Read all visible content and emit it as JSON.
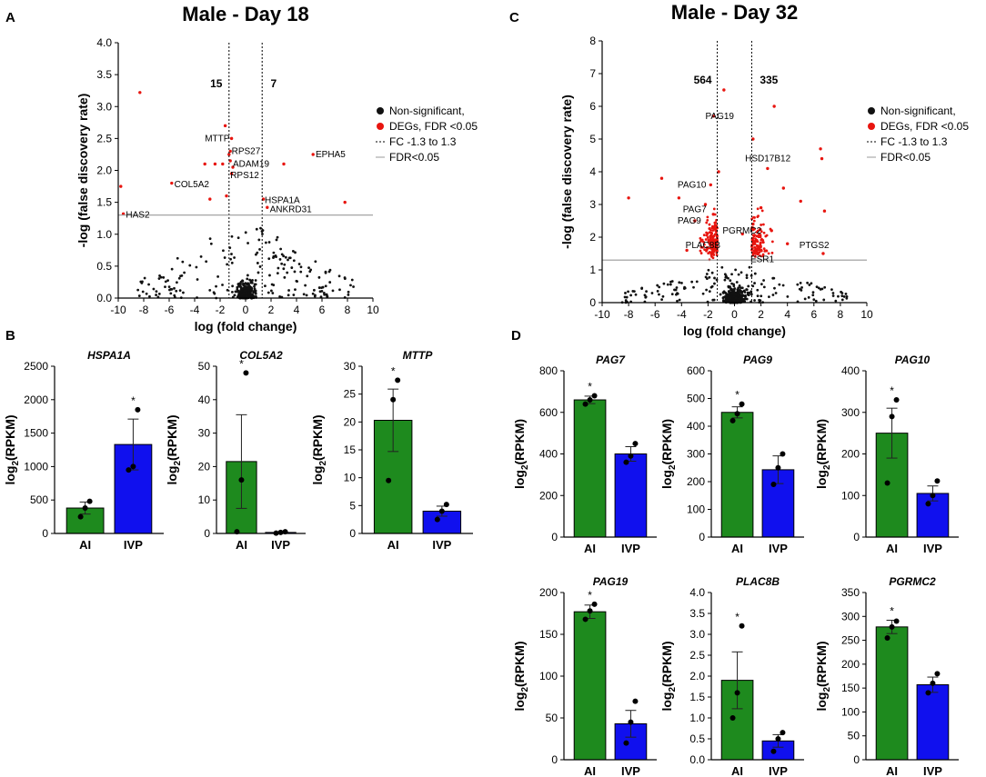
{
  "panel_labels": {
    "A": "A",
    "B": "B",
    "C": "C",
    "D": "D"
  },
  "legend": {
    "nonsig": "Non-significant,",
    "degs": "DEGs, FDR <0.05",
    "fc": "FC -1.3 to 1.3",
    "fdr": "FDR<0.05"
  },
  "colors": {
    "sig": "#e8150f",
    "nonsig": "#111111",
    "ai": "#1e8a1e",
    "ivp": "#1010ee"
  },
  "chart_data": [
    {
      "id": "A",
      "type": "scatter",
      "title": "Male - Day 18",
      "xlabel": "log (fold change)",
      "ylabel": "-log (false discovery rate)",
      "xlim": [
        -10,
        10
      ],
      "ylim": [
        0,
        4.0
      ],
      "xticks": [
        -10,
        -8,
        -6,
        -4,
        -2,
        0,
        2,
        4,
        6,
        8,
        10
      ],
      "yticks": [
        0.0,
        0.5,
        1.0,
        1.5,
        2.0,
        2.5,
        3.0,
        3.5,
        4.0
      ],
      "ytick_decimals": 1,
      "fc_lines": [
        -1.3,
        1.3
      ],
      "fdr_line": 1.3,
      "counts": [
        {
          "text": "15",
          "x": -2.3,
          "y": 3.3
        },
        {
          "text": "7",
          "x": 2.2,
          "y": 3.3
        }
      ],
      "sig_points": [
        {
          "x": -8.3,
          "y": 3.22
        },
        {
          "x": -9.8,
          "y": 1.75
        },
        {
          "x": -9.6,
          "y": 1.32
        },
        {
          "x": -5.8,
          "y": 1.8
        },
        {
          "x": -3.2,
          "y": 2.1
        },
        {
          "x": -2.4,
          "y": 2.1
        },
        {
          "x": -1.8,
          "y": 2.1
        },
        {
          "x": -1.2,
          "y": 2.3
        },
        {
          "x": -1.2,
          "y": 2.15
        },
        {
          "x": -1.0,
          "y": 2.05
        },
        {
          "x": -1.1,
          "y": 1.95
        },
        {
          "x": -2.8,
          "y": 1.55
        },
        {
          "x": -1.5,
          "y": 1.6
        },
        {
          "x": -1.1,
          "y": 2.5
        },
        {
          "x": -1.3,
          "y": 2.25
        },
        {
          "x": 3.0,
          "y": 2.1
        },
        {
          "x": 5.3,
          "y": 2.25
        },
        {
          "x": 1.4,
          "y": 1.55
        },
        {
          "x": 1.7,
          "y": 1.42
        },
        {
          "x": 7.8,
          "y": 1.5
        },
        {
          "x": -1.6,
          "y": 2.7
        }
      ],
      "labels": [
        {
          "text": "MTTP",
          "x": -3.2,
          "y": 2.5,
          "anchor": "start"
        },
        {
          "text": "RPS27",
          "x": -1.1,
          "y": 2.3,
          "anchor": "start"
        },
        {
          "text": "ADAM19",
          "x": -1.0,
          "y": 2.1,
          "anchor": "start"
        },
        {
          "text": "RPS12",
          "x": -1.2,
          "y": 1.92,
          "anchor": "start"
        },
        {
          "text": "COL5A2",
          "x": -5.6,
          "y": 1.78,
          "anchor": "start"
        },
        {
          "text": "HAS2",
          "x": -9.4,
          "y": 1.3,
          "anchor": "start"
        },
        {
          "text": "EPHA5",
          "x": 5.5,
          "y": 2.25,
          "anchor": "start"
        },
        {
          "text": "HSPA1A",
          "x": 1.5,
          "y": 1.53,
          "anchor": "start"
        },
        {
          "text": "ANKRD31",
          "x": 1.9,
          "y": 1.39,
          "anchor": "start"
        }
      ]
    },
    {
      "id": "C",
      "type": "scatter",
      "title": "Male - Day 32",
      "xlabel": "log (fold change)",
      "ylabel": "-log (false discovery rate)",
      "xlim": [
        -10,
        10
      ],
      "ylim": [
        0,
        8
      ],
      "xticks": [
        -10,
        -8,
        -6,
        -4,
        -2,
        0,
        2,
        4,
        6,
        8,
        10
      ],
      "yticks": [
        0,
        1,
        2,
        3,
        4,
        5,
        6,
        7,
        8
      ],
      "ytick_decimals": 0,
      "fc_lines": [
        -1.3,
        1.3
      ],
      "fdr_line": 1.3,
      "counts": [
        {
          "text": "564",
          "x": -2.4,
          "y": 6.7
        },
        {
          "text": "335",
          "x": 2.6,
          "y": 6.7
        }
      ],
      "sig_points": [
        {
          "x": -1.6,
          "y": 5.7
        },
        {
          "x": -0.8,
          "y": 6.5
        },
        {
          "x": 3.0,
          "y": 6.0
        },
        {
          "x": 1.4,
          "y": 5.0
        },
        {
          "x": -8.0,
          "y": 3.2
        },
        {
          "x": -1.2,
          "y": 4.0
        },
        {
          "x": -1.8,
          "y": 3.6
        },
        {
          "x": -2.2,
          "y": 3.0
        },
        {
          "x": -1.6,
          "y": 2.7
        },
        {
          "x": -1.4,
          "y": 2.2
        },
        {
          "x": 0.6,
          "y": 2.1
        },
        {
          "x": 1.4,
          "y": 2.4
        },
        {
          "x": 6.5,
          "y": 4.7
        },
        {
          "x": 6.6,
          "y": 4.4
        },
        {
          "x": 6.8,
          "y": 2.8
        },
        {
          "x": 6.7,
          "y": 1.5
        },
        {
          "x": 5.0,
          "y": 3.1
        },
        {
          "x": -5.5,
          "y": 3.8
        },
        {
          "x": -4.2,
          "y": 3.2
        },
        {
          "x": 3.7,
          "y": 3.5
        },
        {
          "x": 2.5,
          "y": 4.1
        },
        {
          "x": 2.0,
          "y": 2.9
        },
        {
          "x": -3.0,
          "y": 2.5
        },
        {
          "x": -2.5,
          "y": 1.9
        },
        {
          "x": 1.8,
          "y": 1.7
        },
        {
          "x": 2.8,
          "y": 2.2
        },
        {
          "x": 4.0,
          "y": 1.8
        },
        {
          "x": -3.6,
          "y": 1.6
        }
      ],
      "sig_cloud": true,
      "labels": [
        {
          "text": "PAG19",
          "x": -2.2,
          "y": 5.7,
          "anchor": "start"
        },
        {
          "text": "HSD17B12",
          "x": 0.8,
          "y": 4.4,
          "anchor": "start"
        },
        {
          "text": "PAG10",
          "x": -4.3,
          "y": 3.6,
          "anchor": "start"
        },
        {
          "text": "PAG7",
          "x": -3.9,
          "y": 2.85,
          "anchor": "start"
        },
        {
          "text": "PAG9",
          "x": -4.3,
          "y": 2.5,
          "anchor": "start"
        },
        {
          "text": "PGRMC2",
          "x": -0.9,
          "y": 2.2,
          "anchor": "start"
        },
        {
          "text": "PLAC8B",
          "x": -3.7,
          "y": 1.75,
          "anchor": "start"
        },
        {
          "text": "PTGS2",
          "x": 4.9,
          "y": 1.75,
          "anchor": "start"
        },
        {
          "text": "ESR1",
          "x": 1.2,
          "y": 1.32,
          "anchor": "start"
        }
      ]
    },
    {
      "id": "B1",
      "type": "bar",
      "title": "HSPA1A",
      "ylabel": "log2(RPKM)",
      "categories": [
        "AI",
        "IVP"
      ],
      "yticks": [
        0,
        500,
        1000,
        1500,
        2000,
        2500
      ],
      "ylim": [
        0,
        2500
      ],
      "means": [
        380,
        1330
      ],
      "sem": [
        90,
        380
      ],
      "points": [
        [
          250,
          380,
          480
        ],
        [
          950,
          1000,
          1850
        ]
      ],
      "star": [
        false,
        true
      ]
    },
    {
      "id": "B2",
      "type": "bar",
      "title": "COL5A2",
      "ylabel": "log2(RPKM)",
      "categories": [
        "AI",
        "IVP"
      ],
      "yticks": [
        0,
        10,
        20,
        30,
        40,
        50
      ],
      "ylim": [
        0,
        50
      ],
      "means": [
        21.5,
        0.3
      ],
      "sem": [
        14,
        0.15
      ],
      "points": [
        [
          0.5,
          16,
          48
        ],
        [
          0.1,
          0.3,
          0.5
        ]
      ],
      "star": [
        true,
        false
      ]
    },
    {
      "id": "B3",
      "type": "bar",
      "title": "MTTP",
      "ylabel": "log2(RPKM)",
      "categories": [
        "AI",
        "IVP"
      ],
      "yticks": [
        0,
        5,
        10,
        15,
        20,
        25,
        30
      ],
      "ylim": [
        0,
        30
      ],
      "means": [
        20.3,
        4.0
      ],
      "sem": [
        5.6,
        0.9
      ],
      "points": [
        [
          9.5,
          24,
          27.5
        ],
        [
          2.5,
          4.0,
          5.2
        ]
      ],
      "star": [
        true,
        false
      ]
    },
    {
      "id": "D1",
      "type": "bar",
      "title": "PAG7",
      "ylabel": "log2(RPKM)",
      "categories": [
        "AI",
        "IVP"
      ],
      "yticks": [
        0,
        200,
        400,
        600,
        800
      ],
      "ylim": [
        0,
        800
      ],
      "means": [
        660,
        400
      ],
      "sem": [
        18,
        35
      ],
      "points": [
        [
          640,
          660,
          680
        ],
        [
          360,
          390,
          450
        ]
      ],
      "star": [
        true,
        false
      ]
    },
    {
      "id": "D2",
      "type": "bar",
      "title": "PAG9",
      "ylabel": "log2(RPKM)",
      "categories": [
        "AI",
        "IVP"
      ],
      "yticks": [
        0,
        100,
        200,
        300,
        400,
        500,
        600
      ],
      "ylim": [
        0,
        600
      ],
      "means": [
        450,
        243
      ],
      "sem": [
        20,
        50
      ],
      "points": [
        [
          420,
          445,
          480
        ],
        [
          190,
          250,
          300
        ]
      ],
      "star": [
        true,
        false
      ]
    },
    {
      "id": "D3",
      "type": "bar",
      "title": "PAG10",
      "ylabel": "log2(RPKM)",
      "categories": [
        "AI",
        "IVP"
      ],
      "yticks": [
        0,
        100,
        200,
        300,
        400
      ],
      "ylim": [
        0,
        400
      ],
      "means": [
        250,
        105
      ],
      "sem": [
        60,
        18
      ],
      "points": [
        [
          130,
          290,
          330
        ],
        [
          80,
          100,
          135
        ]
      ],
      "star": [
        true,
        false
      ]
    },
    {
      "id": "D4",
      "type": "bar",
      "title": "PAG19",
      "ylabel": "log2(RPKM)",
      "categories": [
        "AI",
        "IVP"
      ],
      "yticks": [
        0,
        50,
        100,
        150,
        200
      ],
      "ylim": [
        0,
        200
      ],
      "means": [
        177,
        43
      ],
      "sem": [
        8,
        16
      ],
      "points": [
        [
          168,
          178,
          186
        ],
        [
          20,
          45,
          70
        ]
      ],
      "star": [
        true,
        false
      ]
    },
    {
      "id": "D5",
      "type": "bar",
      "title": "PLAC8B",
      "ylabel": "log2(RPKM)",
      "categories": [
        "AI",
        "IVP"
      ],
      "yticks": [
        0,
        0.5,
        1.0,
        1.5,
        2.0,
        2.5,
        3.0,
        3.5,
        4.0
      ],
      "ylim": [
        0,
        4.0
      ],
      "means": [
        1.9,
        0.45
      ],
      "sem": [
        0.68,
        0.15
      ],
      "points": [
        [
          1.0,
          1.6,
          3.2
        ],
        [
          0.2,
          0.5,
          0.65
        ]
      ],
      "star": [
        true,
        false
      ]
    },
    {
      "id": "D6",
      "type": "bar",
      "title": "PGRMC2",
      "ylabel": "log2(RPKM)",
      "categories": [
        "AI",
        "IVP"
      ],
      "yticks": [
        0,
        50,
        100,
        150,
        200,
        250,
        300,
        350
      ],
      "ylim": [
        0,
        350
      ],
      "means": [
        278,
        157
      ],
      "sem": [
        14,
        16
      ],
      "points": [
        [
          255,
          278,
          290
        ],
        [
          140,
          160,
          180
        ]
      ],
      "star": [
        true,
        false
      ]
    }
  ]
}
